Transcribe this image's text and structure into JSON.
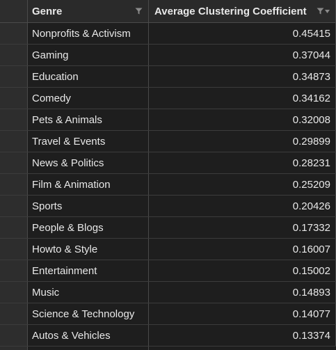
{
  "table": {
    "columns": [
      {
        "label": "Genre",
        "icon": "filter-icon"
      },
      {
        "label": "Average Clustering Coefficient",
        "icon": "filter-sort-icon"
      }
    ],
    "rows": [
      {
        "genre": "Nonprofits & Activism",
        "value": "0.45415"
      },
      {
        "genre": "Gaming",
        "value": "0.37044"
      },
      {
        "genre": "Education",
        "value": "0.34873"
      },
      {
        "genre": "Comedy",
        "value": "0.34162"
      },
      {
        "genre": "Pets & Animals",
        "value": "0.32008"
      },
      {
        "genre": "Travel & Events",
        "value": "0.29899"
      },
      {
        "genre": "News & Politics",
        "value": "0.28231"
      },
      {
        "genre": "Film & Animation",
        "value": "0.25209"
      },
      {
        "genre": "Sports",
        "value": "0.20426"
      },
      {
        "genre": "People & Blogs",
        "value": "0.17332"
      },
      {
        "genre": "Howto & Style",
        "value": "0.16007"
      },
      {
        "genre": "Entertainment",
        "value": "0.15002"
      },
      {
        "genre": "Music",
        "value": "0.14893"
      },
      {
        "genre": "Science & Technology",
        "value": "0.14077"
      },
      {
        "genre": "Autos & Vehicles",
        "value": "0.13374"
      }
    ]
  }
}
